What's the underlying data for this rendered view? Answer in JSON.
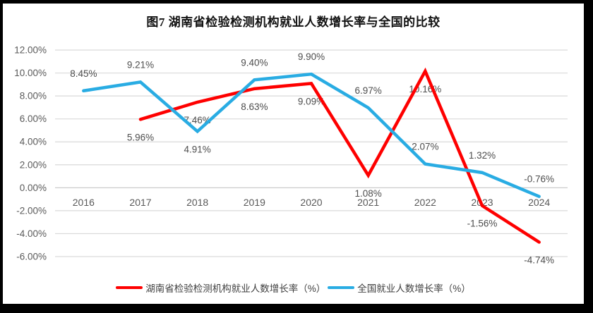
{
  "frame": {
    "background": "#000000",
    "panel_background": "#ffffff"
  },
  "chart_data": {
    "type": "line",
    "title": "图7 湖南省检验检测机构就业人数增长率与全国的比较",
    "categories": [
      "2016",
      "2017",
      "2018",
      "2019",
      "2020",
      "2021",
      "2022",
      "2023",
      "2024"
    ],
    "series": [
      {
        "name": "湖南省检验检测机构就业人数增长率（%）",
        "color": "#FE0000",
        "values": [
          null,
          5.96,
          7.46,
          8.63,
          9.09,
          1.08,
          10.16,
          -1.56,
          -4.74
        ],
        "label_side": [
          null,
          "below",
          "below",
          "below",
          "below",
          "below",
          "below",
          "below",
          "below"
        ]
      },
      {
        "name": "全国就业人数增长率（%）",
        "color": "#29ACE3",
        "values": [
          8.45,
          9.21,
          4.91,
          9.4,
          9.9,
          6.97,
          2.07,
          1.32,
          -0.76
        ],
        "label_side": [
          "above",
          "above",
          "below",
          "above",
          "above",
          "above",
          "above",
          "above",
          "above"
        ]
      }
    ],
    "ylim": [
      -6,
      12
    ],
    "ytick_step": 2,
    "ytick_format": "0.00%",
    "grid": "horizontal",
    "legend_position": "bottom"
  },
  "colors": {
    "grid": "#D9D9D9",
    "zero_line": "#C6C6C6",
    "tick_text": "#595959",
    "data_label_text": "#4D4D4D",
    "title_text": "#111111"
  }
}
